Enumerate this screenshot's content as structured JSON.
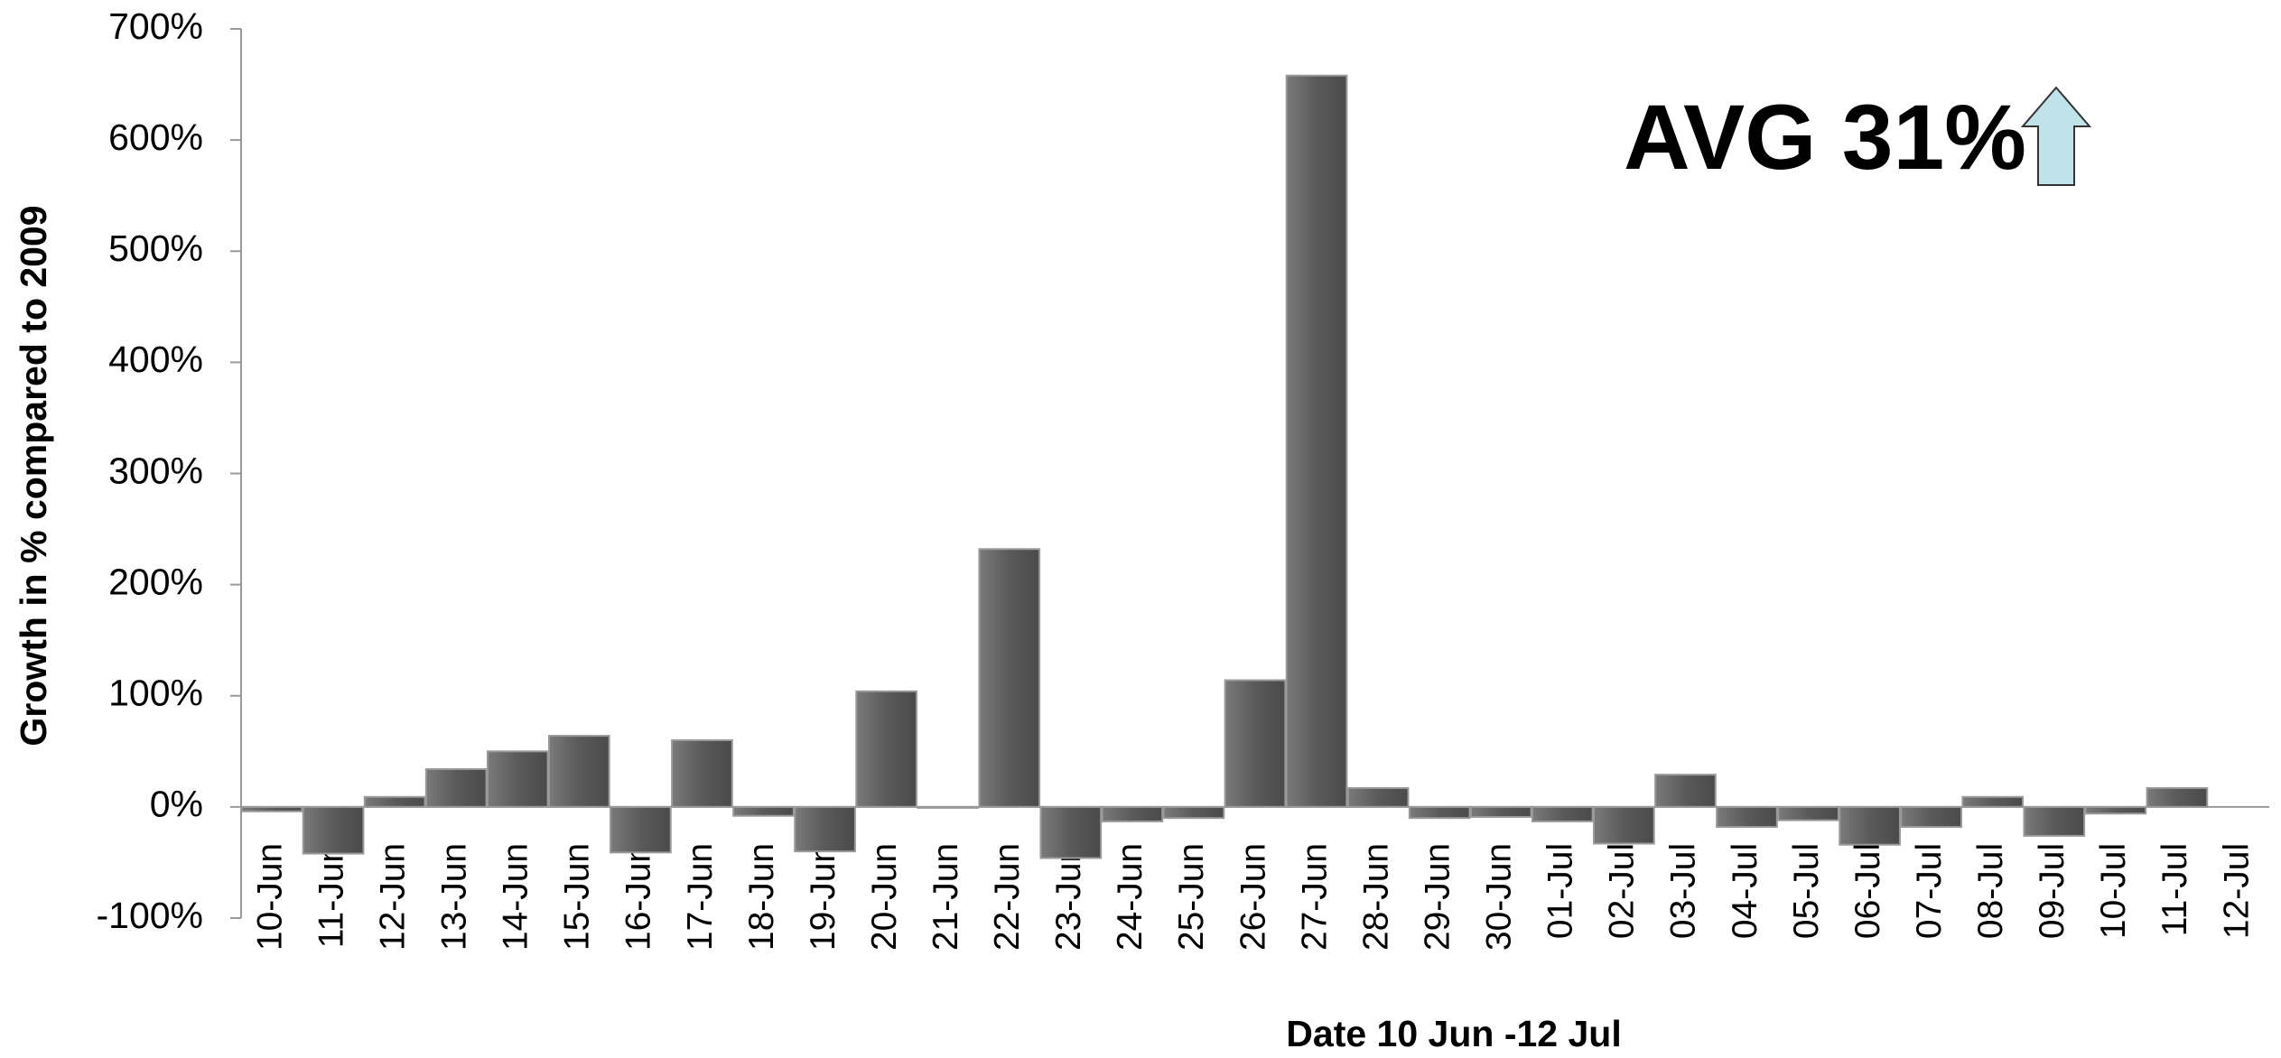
{
  "chart_data": {
    "type": "bar",
    "annotation": "AVG 31%",
    "x_label": "Date 10 Jun -12 Jul",
    "y_label": "Growth in % compared to 2009",
    "categories": [
      "10-Jun",
      "11-Jun",
      "12-Jun",
      "13-Jun",
      "14-Jun",
      "15-Jun",
      "16-Jun",
      "17-Jun",
      "18-Jun",
      "19-Jun",
      "20-Jun",
      "21-Jun",
      "22-Jun",
      "23-Jun",
      "24-Jun",
      "25-Jun",
      "26-Jun",
      "27-Jun",
      "28-Jun",
      "29-Jun",
      "30-Jun",
      "01-Jul",
      "02-Jul",
      "03-Jul",
      "04-Jul",
      "05-Jul",
      "06-Jul",
      "07-Jul",
      "08-Jul",
      "09-Jul",
      "10-Jul",
      "11-Jul",
      "12-Jul"
    ],
    "values": [
      -4,
      -42,
      9,
      34,
      50,
      64,
      -41,
      60,
      -8,
      -40,
      104,
      0,
      232,
      -46,
      -13,
      -10,
      114,
      658,
      17,
      -10,
      -9,
      -13,
      -33,
      29,
      -18,
      -12,
      -34,
      -18,
      9,
      -26,
      -6,
      17,
      null
    ],
    "color": "#606060",
    "ylim": [
      -100,
      700
    ],
    "yticks": [
      {
        "value": -100,
        "label": "-100%"
      },
      {
        "value": 0,
        "label": "0%"
      },
      {
        "value": 100,
        "label": "100%"
      },
      {
        "value": 200,
        "label": "200%"
      },
      {
        "value": 300,
        "label": "300%"
      },
      {
        "value": 400,
        "label": "400%"
      },
      {
        "value": 500,
        "label": "500%"
      },
      {
        "value": 600,
        "label": "600%"
      },
      {
        "value": 700,
        "label": "700%"
      }
    ],
    "grid": false
  }
}
